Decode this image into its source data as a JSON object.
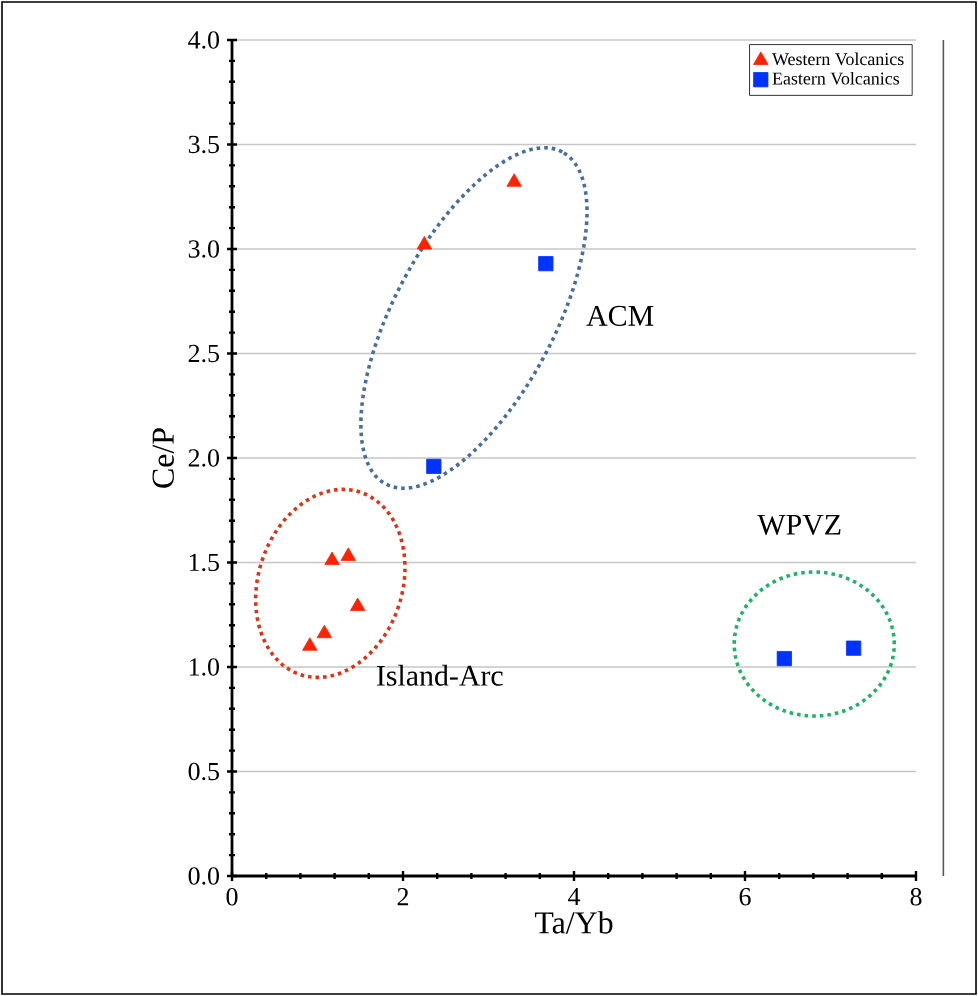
{
  "chart_data": {
    "type": "scatter",
    "xlabel": "Ta/Yb",
    "ylabel": "Ce/P",
    "xlim": [
      0,
      8
    ],
    "xticks": [
      0,
      2,
      4,
      6,
      8
    ],
    "ylim": [
      0,
      4
    ],
    "yticks": [
      {
        "value": 0,
        "label": "0.0"
      },
      {
        "value": 0.5,
        "label": "0.5"
      },
      {
        "value": 1,
        "label": "1.0"
      },
      {
        "value": 1.5,
        "label": "1.5"
      },
      {
        "value": 2,
        "label": "2.0"
      },
      {
        "value": 2.5,
        "label": "2.5"
      },
      {
        "value": 3,
        "label": "3.0"
      },
      {
        "value": 3.5,
        "label": "3.5"
      },
      {
        "value": 4,
        "label": "4.0"
      }
    ],
    "grid": "y",
    "legend": "top right",
    "series": [
      {
        "name": "Western Volcanics",
        "color": "#ff2200",
        "marker": "triangle",
        "x": [
          2.25,
          3.3,
          1.17,
          1.36,
          1.47,
          1.08,
          0.91
        ],
        "values": [
          3.02,
          3.32,
          1.51,
          1.53,
          1.29,
          1.16,
          1.1
        ]
      },
      {
        "name": "Eastern Volcanics",
        "color": "#0033ff",
        "marker": "square",
        "x": [
          3.67,
          2.36,
          6.46,
          7.27
        ],
        "values": [
          2.93,
          1.96,
          1.04,
          1.09
        ]
      }
    ],
    "annotations": [
      "ACM",
      "WPVZ",
      "Island-Arc"
    ]
  }
}
